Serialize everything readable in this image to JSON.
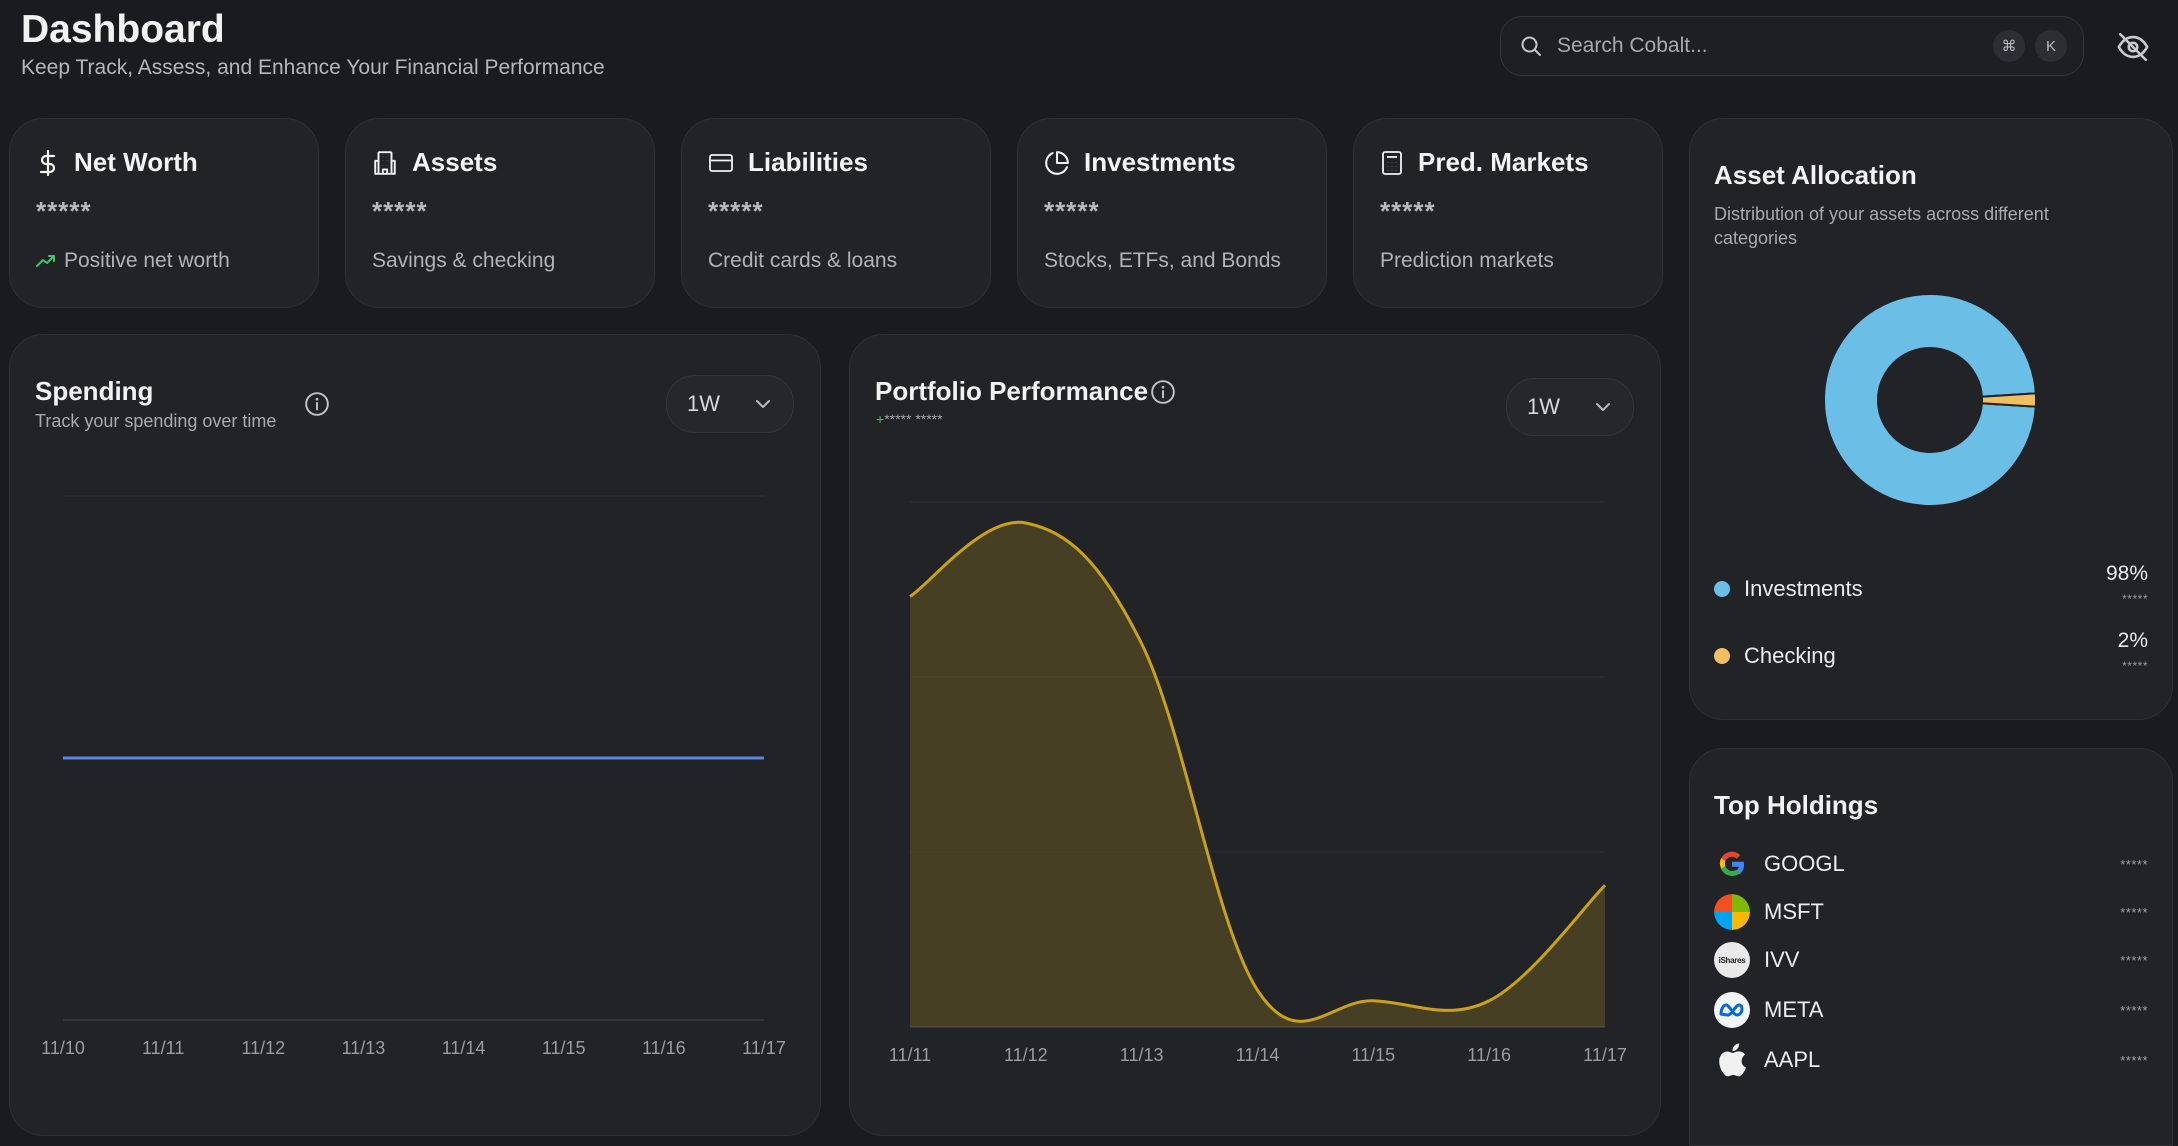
{
  "header": {
    "title": "Dashboard",
    "subtitle": "Keep Track, Assess, and Enhance Your Financial Performance",
    "search_placeholder": "Search Cobalt...",
    "shortcut_keys": [
      "⌘",
      "K"
    ]
  },
  "stats": [
    {
      "title": "Net Worth",
      "value": "*****",
      "desc": "Positive net worth",
      "icon": "dollar-icon"
    },
    {
      "title": "Assets",
      "value": "*****",
      "desc": "Savings & checking",
      "icon": "building-icon"
    },
    {
      "title": "Liabilities",
      "value": "*****",
      "desc": "Credit cards & loans",
      "icon": "credit-card-icon"
    },
    {
      "title": "Investments",
      "value": "*****",
      "desc": "Stocks, ETFs, and Bonds",
      "icon": "pie-chart-icon"
    },
    {
      "title": "Pred. Markets",
      "value": "*****",
      "desc": "Prediction markets",
      "icon": "calculator-icon"
    }
  ],
  "spending": {
    "title": "Spending",
    "subtitle": "Track your spending over time",
    "range": "1W",
    "line_color": "#5b86e5"
  },
  "portfolio": {
    "title": "Portfolio Performance",
    "change_sign": "+",
    "change": "***** *****",
    "range": "1W",
    "line_color": "#c9a21a"
  },
  "chart_data": [
    {
      "type": "line",
      "title": "Spending",
      "x": [
        "11/10",
        "11/11",
        "11/12",
        "11/13",
        "11/14",
        "11/15",
        "11/16",
        "11/17"
      ],
      "series": [
        {
          "values": [
            0,
            0,
            0,
            0,
            0,
            0,
            0,
            0
          ]
        }
      ],
      "ylim": [
        -1,
        1
      ],
      "grid": true,
      "legend": "none"
    },
    {
      "type": "area",
      "title": "Portfolio Performance",
      "x": [
        "11/11",
        "11/12",
        "11/13",
        "11/14",
        "11/15",
        "11/16",
        "11/17"
      ],
      "series": [
        {
          "values": [
            0.82,
            0.96,
            0.73,
            0.07,
            0.05,
            0.05,
            0.27
          ]
        }
      ],
      "ylim": [
        0,
        1
      ],
      "grid": true,
      "legend": "none"
    },
    {
      "type": "pie",
      "title": "Asset Allocation",
      "categories": [
        "Investments",
        "Checking"
      ],
      "values": [
        98,
        2
      ],
      "colors": [
        "#6bbfe6",
        "#f0c060"
      ],
      "legend": "bottom"
    }
  ],
  "allocation": {
    "title": "Asset Allocation",
    "subtitle": "Distribution of your assets across different categories",
    "items": [
      {
        "name": "Investments",
        "pct": "98%",
        "amount": "*****",
        "color": "#6bbfe6"
      },
      {
        "name": "Checking",
        "pct": "2%",
        "amount": "*****",
        "color": "#f0c060"
      }
    ]
  },
  "holdings": {
    "title": "Top Holdings",
    "items": [
      {
        "symbol": "GOOGL",
        "amount": "*****",
        "logo": "google-logo-icon"
      },
      {
        "symbol": "MSFT",
        "amount": "*****",
        "logo": "microsoft-logo-icon"
      },
      {
        "symbol": "IVV",
        "amount": "*****",
        "logo": "ishares-logo-icon",
        "logo_text": "iShares"
      },
      {
        "symbol": "META",
        "amount": "*****",
        "logo": "meta-logo-icon"
      },
      {
        "symbol": "AAPL",
        "amount": "*****",
        "logo": "apple-logo-icon"
      }
    ]
  }
}
